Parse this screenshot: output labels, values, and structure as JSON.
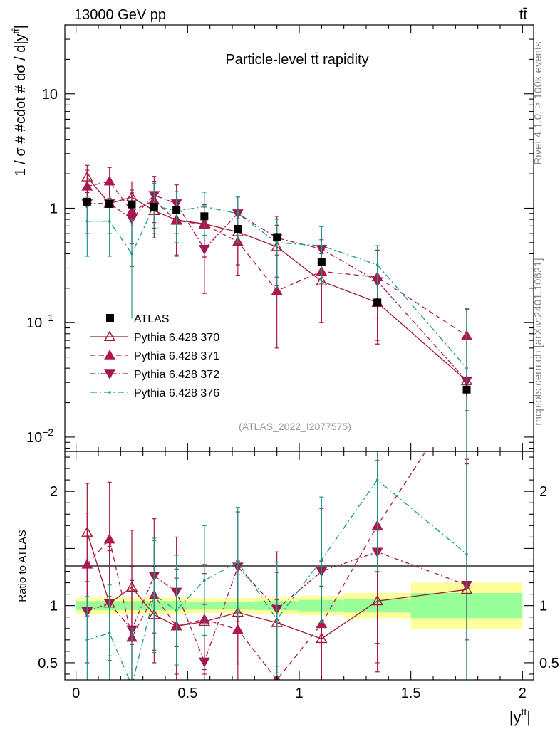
{
  "header": {
    "energy_label": "13000 GeV pp",
    "process_label": "tt̄",
    "title": "Particle-level tt̄ rapidity",
    "analysis_id": "(ATLAS_2022_I2077575)",
    "side_label_rivet": "Rivet 4.1.0, ≥ 100k events",
    "side_label_mcplots": "mcplots.cern.ch [arXiv:2401.10621]"
  },
  "chart_data": {
    "type": "scatter",
    "main": {
      "ylabel": "1 / σ # #cdot # dσ / d|y",
      "ylabel_sup": "tt̄",
      "ylabel_close": "|",
      "yscale": "log",
      "ylim": [
        0.0075,
        40
      ],
      "yticks": [
        {
          "value": 10,
          "base": "10",
          "exp": ""
        },
        {
          "value": 1,
          "base": "1",
          "exp": ""
        },
        {
          "value": 0.1,
          "base": "10",
          "exp": "−1"
        },
        {
          "value": 0.01,
          "base": "10",
          "exp": "−2"
        }
      ]
    },
    "ratio": {
      "ylabel": "Ratio to ATLAS",
      "ylim": [
        0.35,
        2.35
      ],
      "yticks": [
        {
          "value": 2,
          "label": "2"
        },
        {
          "value": 1,
          "label": "1"
        },
        {
          "value": 0.5,
          "label": "0.5"
        }
      ],
      "bands": [
        {
          "x0": 0.0,
          "x1": 0.1,
          "inner": [
            0.96,
            1.04
          ],
          "outer": [
            0.93,
            1.07
          ]
        },
        {
          "x0": 0.1,
          "x1": 0.2,
          "inner": [
            0.96,
            1.04
          ],
          "outer": [
            0.93,
            1.07
          ]
        },
        {
          "x0": 0.2,
          "x1": 0.3,
          "inner": [
            0.96,
            1.04
          ],
          "outer": [
            0.93,
            1.07
          ]
        },
        {
          "x0": 0.3,
          "x1": 0.4,
          "inner": [
            0.96,
            1.04
          ],
          "outer": [
            0.93,
            1.07
          ]
        },
        {
          "x0": 0.4,
          "x1": 0.5,
          "inner": [
            0.96,
            1.04
          ],
          "outer": [
            0.93,
            1.07
          ]
        },
        {
          "x0": 0.5,
          "x1": 0.65,
          "inner": [
            0.965,
            1.035
          ],
          "outer": [
            0.935,
            1.065
          ]
        },
        {
          "x0": 0.65,
          "x1": 0.8,
          "inner": [
            0.965,
            1.035
          ],
          "outer": [
            0.935,
            1.065
          ]
        },
        {
          "x0": 0.8,
          "x1": 1.0,
          "inner": [
            0.96,
            1.04
          ],
          "outer": [
            0.93,
            1.07
          ]
        },
        {
          "x0": 1.0,
          "x1": 1.2,
          "inner": [
            0.95,
            1.05
          ],
          "outer": [
            0.915,
            1.085
          ]
        },
        {
          "x0": 1.2,
          "x1": 1.5,
          "inner": [
            0.94,
            1.06
          ],
          "outer": [
            0.89,
            1.11
          ]
        },
        {
          "x0": 1.5,
          "x1": 2.0,
          "inner": [
            0.89,
            1.11
          ],
          "outer": [
            0.8,
            1.2
          ]
        }
      ]
    },
    "x": {
      "label": "|y",
      "label_sup": "tt̄",
      "label_close": "|",
      "xlim": [
        -0.05,
        2.05
      ],
      "ticks": [
        {
          "value": 0,
          "label": "0"
        },
        {
          "value": 0.5,
          "label": "0.5"
        },
        {
          "value": 1,
          "label": "1"
        },
        {
          "value": 1.5,
          "label": "1.5"
        },
        {
          "value": 2,
          "label": "2"
        }
      ]
    },
    "x_centers": [
      0.05,
      0.15,
      0.25,
      0.35,
      0.45,
      0.575,
      0.725,
      0.9,
      1.1,
      1.35,
      1.75
    ],
    "x_halfwidths": [
      0.05,
      0.05,
      0.05,
      0.05,
      0.05,
      0.075,
      0.075,
      0.1,
      0.1,
      0.15,
      0.25
    ],
    "data": {
      "name": "ATLAS",
      "values": [
        1.14,
        1.09,
        1.08,
        1.03,
        0.97,
        0.85,
        0.66,
        0.56,
        0.34,
        0.15,
        0.026
      ],
      "errors": [
        0.05,
        0.05,
        0.05,
        0.05,
        0.04,
        0.03,
        0.03,
        0.03,
        0.02,
        0.015,
        0.003
      ]
    },
    "series": [
      {
        "name": "Pythia 6.428 370",
        "color": "#9b1b2e",
        "marker": "triangle-up-open",
        "dash": "",
        "values": [
          1.87,
          1.1,
          1.25,
          0.95,
          0.79,
          0.73,
          0.62,
          0.46,
          0.23,
          0.15,
          0.031
        ],
        "errors_lo": [
          0.5,
          0.5,
          0.55,
          0.4,
          0.4,
          0.35,
          0.3,
          0.25,
          0.13,
          0.085,
          0.027
        ],
        "errors_hi": [
          0.5,
          0.5,
          0.45,
          0.45,
          0.35,
          0.35,
          0.3,
          0.25,
          0.17,
          0.09,
          0.1
        ],
        "ratio": [
          1.64,
          1.02,
          1.16,
          0.92,
          0.82,
          0.86,
          0.94,
          0.85,
          0.71,
          1.04,
          1.14
        ],
        "ratio_errors": [
          0.43,
          0.46,
          0.5,
          0.42,
          0.42,
          0.42,
          0.45,
          0.44,
          0.46,
          0.62,
          1.1
        ]
      },
      {
        "name": "Pythia 6.428 371",
        "color": "#b0164f",
        "marker": "triangle-up",
        "dash": "7,5",
        "values": [
          1.55,
          1.72,
          0.94,
          1.17,
          0.78,
          0.72,
          0.51,
          0.19,
          0.28,
          0.25,
          0.077
        ],
        "errors_lo": [
          0.5,
          0.5,
          0.45,
          0.5,
          0.4,
          0.35,
          0.25,
          0.13,
          0.18,
          0.18,
          0.06
        ],
        "errors_hi": [
          0.6,
          0.55,
          0.5,
          0.55,
          0.4,
          0.35,
          0.3,
          0.2,
          0.25,
          0.22,
          0.055
        ],
        "ratio": [
          1.36,
          1.58,
          0.72,
          1.09,
          0.82,
          0.88,
          0.79,
          0.35,
          0.84,
          1.7,
          2.9
        ],
        "ratio_errors": [
          0.45,
          0.5,
          0.5,
          0.48,
          0.5,
          0.48,
          0.48,
          0.7,
          0.55,
          1.2,
          2.2
        ]
      },
      {
        "name": "Pythia 6.428 372",
        "color": "#a01850",
        "marker": "triangle-down",
        "dash": "7,3,2,3",
        "values": [
          1.1,
          1.1,
          0.81,
          1.3,
          1.1,
          0.44,
          0.9,
          0.55,
          0.44,
          0.23,
          0.031
        ],
        "errors_lo": [
          0.5,
          0.5,
          0.5,
          0.55,
          0.5,
          0.26,
          0.4,
          0.3,
          0.22,
          0.12,
          0.025
        ],
        "errors_hi": [
          0.6,
          0.55,
          0.55,
          0.6,
          0.5,
          0.35,
          0.35,
          0.3,
          0.25,
          0.2,
          0.1
        ],
        "ratio": [
          0.95,
          1.02,
          0.79,
          1.26,
          1.12,
          0.51,
          1.34,
          0.97,
          1.3,
          1.47,
          1.18
        ],
        "ratio_errors": [
          0.45,
          0.5,
          0.55,
          0.5,
          0.48,
          0.5,
          0.48,
          0.5,
          0.55,
          0.8,
          1.1
        ]
      },
      {
        "name": "Pythia 6.428 376",
        "color": "#1a9a8a",
        "marker": "dot",
        "dash": "9,4,2,4",
        "values": [
          0.77,
          0.77,
          0.4,
          1.05,
          0.95,
          1.03,
          0.9,
          0.5,
          0.47,
          0.32,
          0.04
        ],
        "errors_lo": [
          0.39,
          0.39,
          0.29,
          0.45,
          0.45,
          0.45,
          0.4,
          0.3,
          0.25,
          0.18,
          0.04
        ],
        "errors_hi": [
          0.5,
          0.5,
          0.4,
          0.6,
          0.45,
          0.35,
          0.35,
          0.3,
          0.22,
          0.15,
          0.09
        ],
        "ratio": [
          0.7,
          0.76,
          0.3,
          1.09,
          0.96,
          1.22,
          1.38,
          0.88,
          1.4,
          2.1,
          1.45
        ],
        "ratio_errors": [
          0.38,
          0.42,
          0.5,
          0.5,
          0.48,
          0.48,
          0.48,
          0.5,
          0.55,
          0.8,
          1.2
        ]
      }
    ]
  }
}
